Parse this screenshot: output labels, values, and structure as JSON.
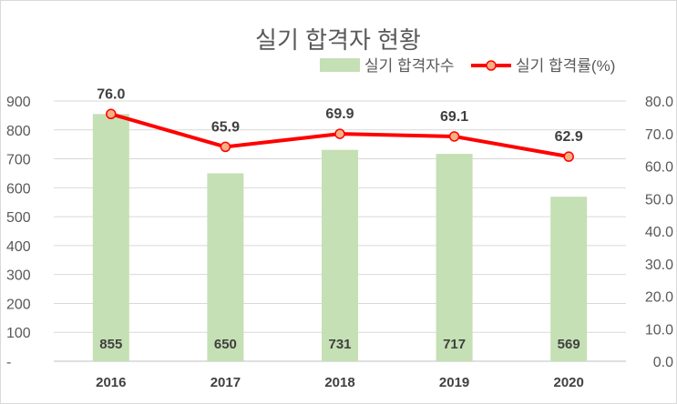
{
  "chart_data": {
    "type": "bar+line",
    "title": "실기 합격자 현황",
    "categories": [
      "2016",
      "2017",
      "2018",
      "2019",
      "2020"
    ],
    "series": [
      {
        "name": "실기 합격자수",
        "type": "bar",
        "axis": "left",
        "values": [
          855,
          650,
          731,
          717,
          569
        ],
        "labels": [
          "855",
          "650",
          "731",
          "717",
          "569"
        ],
        "color": "#c5e0b4"
      },
      {
        "name": "실기 합격률(%)",
        "type": "line",
        "axis": "right",
        "values": [
          76.0,
          65.9,
          69.9,
          69.1,
          62.9
        ],
        "labels": [
          "76.0",
          "65.9",
          "69.9",
          "69.1",
          "62.9"
        ],
        "color": "#ff0000",
        "marker_fill": "#f4b183"
      }
    ],
    "y_left": {
      "ylim": [
        0,
        900
      ],
      "ticks": [
        "-",
        "100",
        "200",
        "300",
        "400",
        "500",
        "600",
        "700",
        "800",
        "900"
      ]
    },
    "y_right": {
      "ylim": [
        0,
        80
      ],
      "ticks": [
        "0.0",
        "10.0",
        "20.0",
        "30.0",
        "40.0",
        "50.0",
        "60.0",
        "70.0",
        "80.0"
      ]
    },
    "grid": true,
    "legend": "top-right"
  }
}
